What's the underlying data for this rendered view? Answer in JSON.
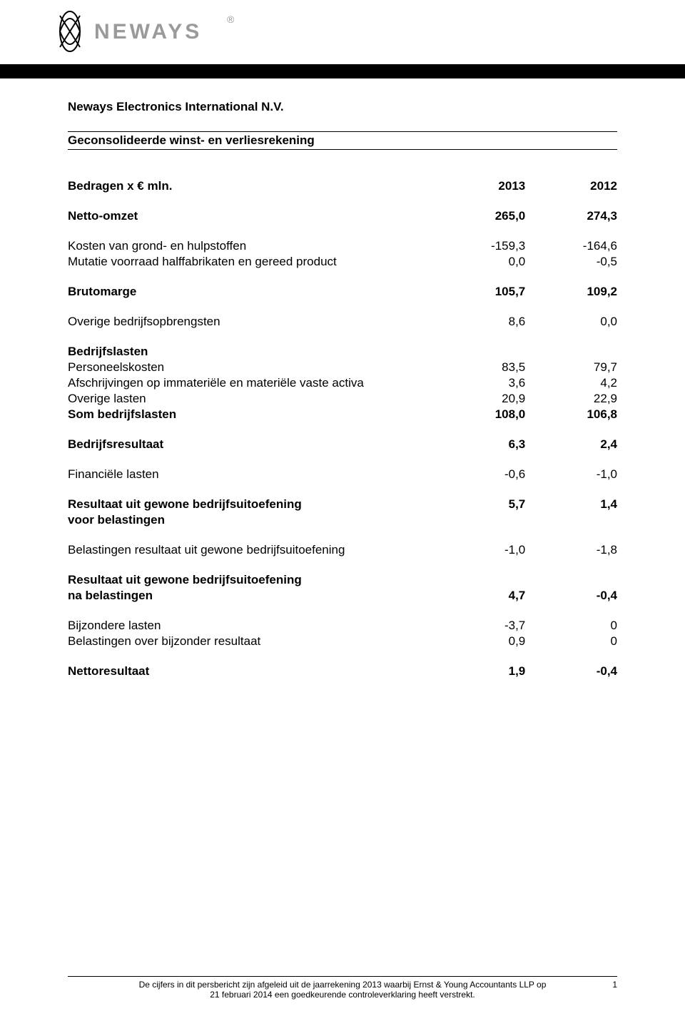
{
  "company_name": "Neways Electronics International N.V.",
  "section_title": "Geconsolideerde winst- en verliesrekening",
  "table": {
    "header_label": "Bedragen x € mln.",
    "col_years": [
      "2013",
      "2012"
    ],
    "rows": [
      {
        "type": "spacer"
      },
      {
        "label": "Netto-omzet",
        "v1": "265,0",
        "v2": "274,3",
        "bold": true
      },
      {
        "type": "spacer"
      },
      {
        "label": "Kosten van grond- en hulpstoffen",
        "v1": "-159,3",
        "v2": "-164,6"
      },
      {
        "label": "Mutatie voorraad halffabrikaten en gereed product",
        "v1": "0,0",
        "v2": "-0,5"
      },
      {
        "type": "spacer"
      },
      {
        "label": "Brutomarge",
        "v1": "105,7",
        "v2": "109,2",
        "bold": true
      },
      {
        "type": "spacer"
      },
      {
        "label": "Overige bedrijfsopbrengsten",
        "v1": "8,6",
        "v2": "0,0"
      },
      {
        "type": "spacer"
      },
      {
        "label": "Bedrijfslasten",
        "bold_label": true
      },
      {
        "label": "Personeelskosten",
        "v1": "83,5",
        "v2": "79,7"
      },
      {
        "label": "Afschrijvingen op immateriële en materiële vaste activa",
        "v1": "3,6",
        "v2": "4,2"
      },
      {
        "label": "Overige lasten",
        "v1": "20,9",
        "v2": "22,9"
      },
      {
        "label": "Som bedrijfslasten",
        "v1": "108,0",
        "v2": "106,8",
        "bold": true
      },
      {
        "type": "spacer"
      },
      {
        "label": "Bedrijfsresultaat",
        "v1": "6,3",
        "v2": "2,4",
        "bold": true
      },
      {
        "type": "spacer"
      },
      {
        "label": "Financiële lasten",
        "v1": "-0,6",
        "v2": "-1,0"
      },
      {
        "type": "spacer"
      },
      {
        "label": "Resultaat uit gewone bedrijfsuitoefening",
        "v1": "5,7",
        "v2": "1,4",
        "bold": true
      },
      {
        "label": "voor belastingen",
        "bold_label": true
      },
      {
        "type": "spacer"
      },
      {
        "label": "Belastingen resultaat uit gewone bedrijfsuitoefening",
        "v1": "-1,0",
        "v2": "-1,8"
      },
      {
        "type": "spacer"
      },
      {
        "label": "Resultaat uit gewone bedrijfsuitoefening",
        "bold_label": true
      },
      {
        "label": "na belastingen",
        "v1": "4,7",
        "v2": "-0,4",
        "bold": true
      },
      {
        "type": "spacer"
      },
      {
        "label": "Bijzondere lasten",
        "v1": "-3,7",
        "v2": "0"
      },
      {
        "label": "Belastingen over bijzonder resultaat",
        "v1": "0,9",
        "v2": "0"
      },
      {
        "type": "spacer"
      },
      {
        "label": "Nettoresultaat",
        "v1": "1,9",
        "v2": "-0,4",
        "bold": true
      }
    ]
  },
  "footer": {
    "line1": "De cijfers in dit persbericht zijn afgeleid uit de jaarrekening 2013 waarbij Ernst & Young Accountants LLP op",
    "line2": "21 februari 2014 een goedkeurende controleverklaring heeft verstrekt.",
    "page_number": "1"
  },
  "logo": {
    "brand_text": "NEWAYS",
    "text_color": "#9a9a9a",
    "stroke_color": "#000000"
  }
}
